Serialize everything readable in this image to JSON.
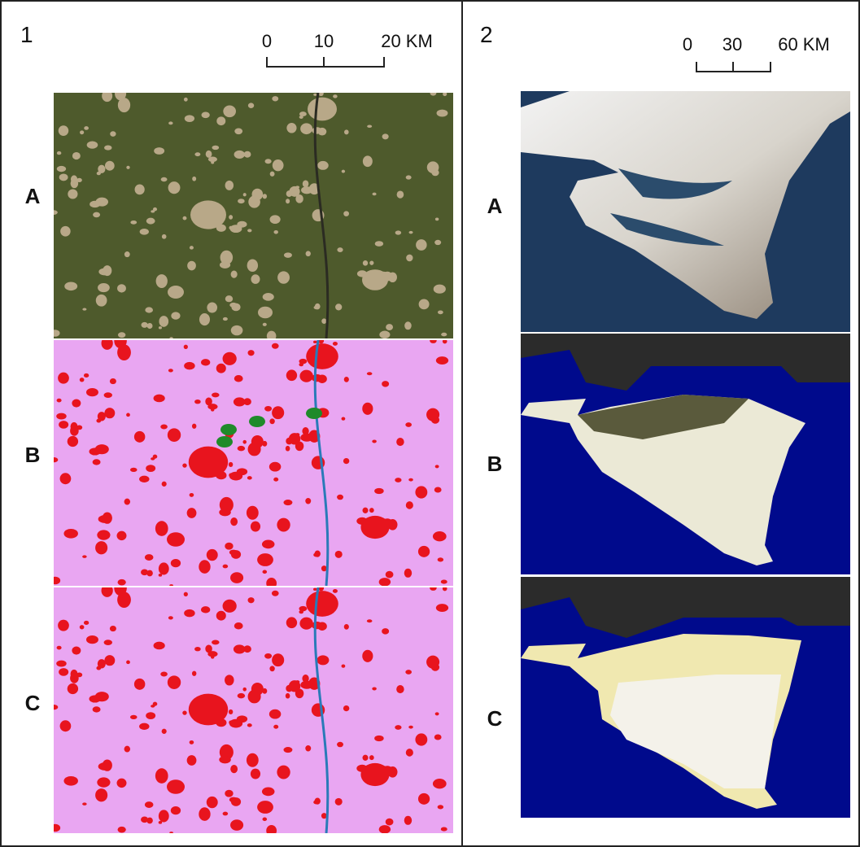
{
  "panels": [
    {
      "label": "1",
      "scale_bar": {
        "labels": [
          "0",
          "10",
          "20 KM"
        ]
      },
      "rows": [
        "A",
        "B",
        "C"
      ]
    },
    {
      "label": "2",
      "scale_bar": {
        "labels": [
          "0",
          "30",
          "60 KM"
        ]
      },
      "rows": [
        "A",
        "B",
        "C"
      ]
    }
  ]
}
